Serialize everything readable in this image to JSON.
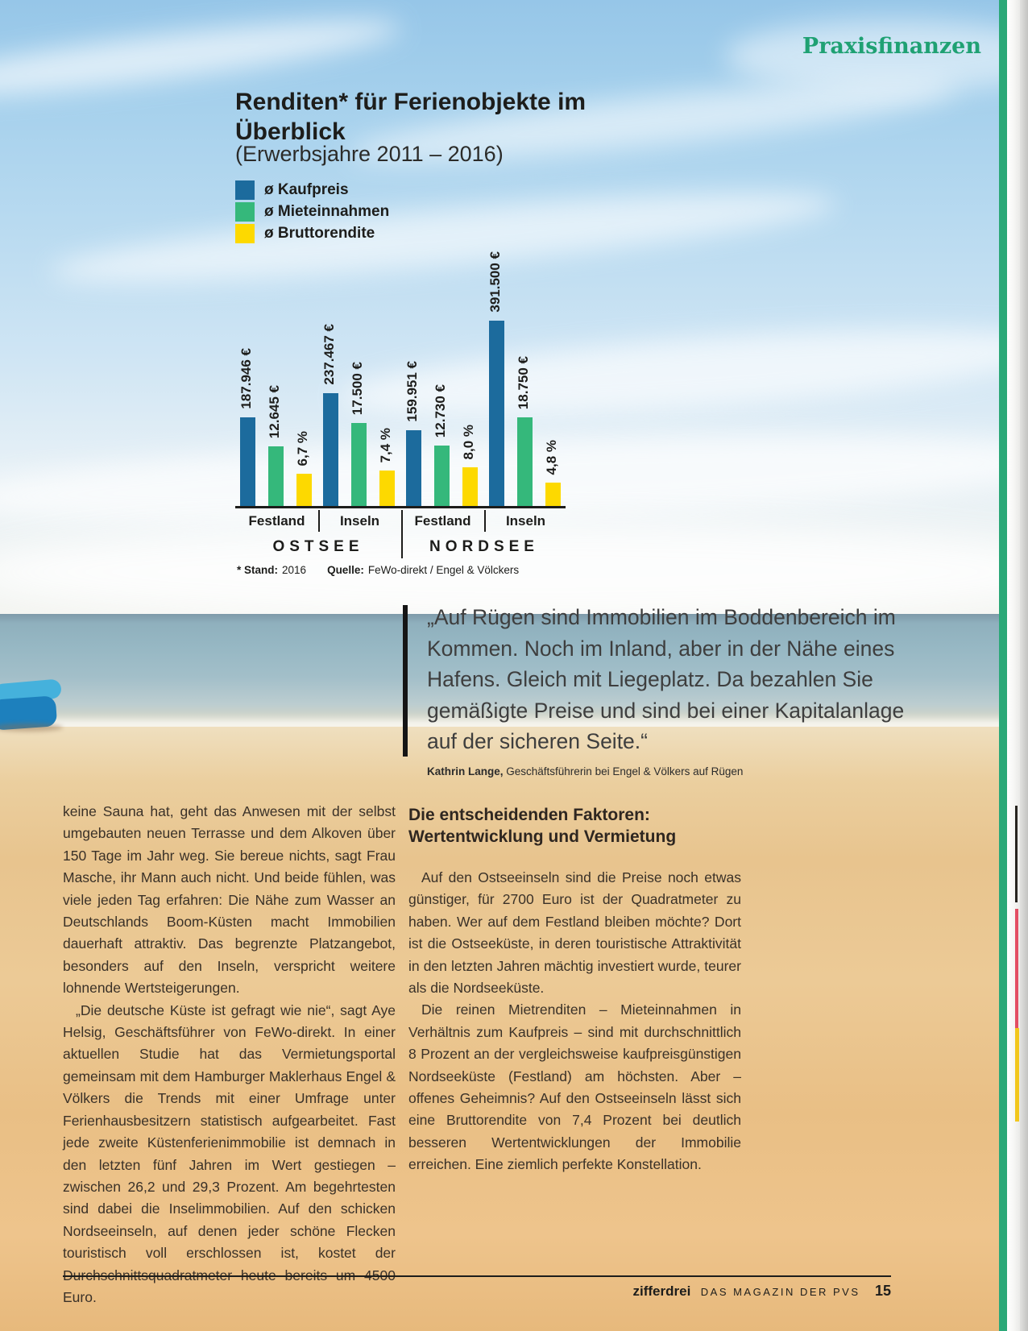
{
  "page": {
    "section_label": "Praxisfinanzen",
    "footer": {
      "brand": "zifferdrei",
      "magazine": "DAS MAGAZIN DER PVS",
      "page_number": "15"
    }
  },
  "chart": {
    "title_line1": "Renditen* für Ferienobjekte im",
    "title_line2": "Überblick",
    "subtitle": "(Erwerbsjahre 2011 – 2016)",
    "legend": [
      {
        "label": "ø Kaufpreis",
        "color": "#1c6b9d"
      },
      {
        "label": "ø Mieteinnahmen",
        "color": "#35b87b"
      },
      {
        "label": "ø Bruttorendite",
        "color": "#fdd900"
      }
    ],
    "footnote": {
      "stand_label": "* Stand:",
      "stand_value": "2016",
      "quelle_label": "Quelle:",
      "quelle_value": "FeWo-direkt / Engel & Völckers"
    }
  },
  "chart_data": {
    "type": "bar",
    "title": "Renditen für Ferienobjekte im Überblick",
    "subtitle": "(Erwerbsjahre 2011 – 2016)",
    "categories": [
      "Ostsee Festland",
      "Ostsee Inseln",
      "Nordsee Festland",
      "Nordsee Inseln"
    ],
    "group_labels": [
      "Festland",
      "Inseln",
      "Festland",
      "Inseln"
    ],
    "sea_labels": [
      "OSTSEE",
      "NORDSEE"
    ],
    "legend_position": "top-left",
    "grid": false,
    "series": [
      {
        "name": "ø Kaufpreis",
        "unit": "€",
        "color": "#1c6b9d",
        "values": [
          187946,
          237467,
          159951,
          391500
        ],
        "labels": [
          "187.946 €",
          "237.467 €",
          "159.951 €",
          "391.500 €"
        ]
      },
      {
        "name": "ø Mieteinnahmen",
        "unit": "€",
        "color": "#35b87b",
        "values": [
          12645,
          17500,
          12730,
          18750
        ],
        "labels": [
          "12.645 €",
          "17.500 €",
          "12.730 €",
          "18.750 €"
        ]
      },
      {
        "name": "ø Bruttorendite",
        "unit": "%",
        "color": "#fdd900",
        "values": [
          6.7,
          7.4,
          8.0,
          4.8
        ],
        "labels": [
          "6,7 %",
          "7,4 %",
          "8,0 %",
          "4,8 %"
        ]
      }
    ]
  },
  "quote": {
    "text": "„Auf Rügen sind Immobilien im Boddenbereich im Kommen. Noch im Inland, aber in der Nähe eines Hafens. Gleich mit Liegeplatz. Da bezahlen Sie gemäßigte Preise und sind bei einer Kapitalanlage auf der sicheren Seite.“",
    "author": "Kathrin Lange,",
    "author_role": " Geschäftsführerin bei Engel & Völkers auf Rügen"
  },
  "article": {
    "left_paragraphs": [
      "keine Sauna hat, geht das Anwesen mit der selbst umgebauten neuen Terrasse und dem Alkoven über 150 Tage im Jahr weg. Sie bereue nichts, sagt Frau Masche, ihr Mann auch nicht. Und beide fühlen, was viele jeden Tag erfahren: Die Nähe zum Wasser an Deutschlands Boom-Küsten macht Immobilien dauerhaft attraktiv. Das begrenzte Platzangebot, besonders auf den Inseln, verspricht weitere lohnende Wertsteigerungen.",
      "„Die deutsche Küste ist gefragt wie nie“, sagt Aye Helsig, Geschäftsführer von FeWo-direkt. In einer aktuellen Studie hat das Vermietungsportal gemeinsam mit dem Hamburger Maklerhaus Engel & Völkers die Trends mit einer Umfrage unter Ferienhausbesitzern statistisch aufgearbeitet. Fast jede zweite Küstenferienimmobilie ist demnach in den letzten fünf Jahren im Wert gestiegen – zwischen 26,2 und 29,3 Prozent. Am begehrtesten sind dabei die Inselimmobilien. Auf den schicken Nordseeinseln, auf denen jeder schöne Flecken touristisch voll erschlossen ist, kostet der Durchschnittsquadratmeter heute bereits um 4500 Euro."
    ],
    "right_heading_line1": "Die entscheidenden Faktoren:",
    "right_heading_line2": "Wertentwicklung und Vermietung",
    "right_paragraphs": [
      "Auf den Ostseeinseln sind die Preise noch etwas günstiger, für 2700 Euro ist der Quadratmeter zu haben. Wer auf dem Festland bleiben möchte? Dort ist die Ostseeküste, in deren touristische Attraktivität in den letzten Jahren mächtig investiert wurde, teurer als die Nordseeküste.",
      "Die reinen Mietrenditen – Mieteinnahmen in Verhältnis zum Kaufpreis – sind mit durchschnittlich 8 Prozent an der vergleichsweise kaufpreisgünstigen Nordseeküste (Festland) am höchsten. Aber – offenes Geheimnis? Auf den Ostseeinseln lässt sich eine Bruttorendite von 7,4 Prozent bei deutlich besseren Wertentwicklungen der Immobilie erreichen. Eine ziemlich perfekte Konstellation."
    ]
  }
}
